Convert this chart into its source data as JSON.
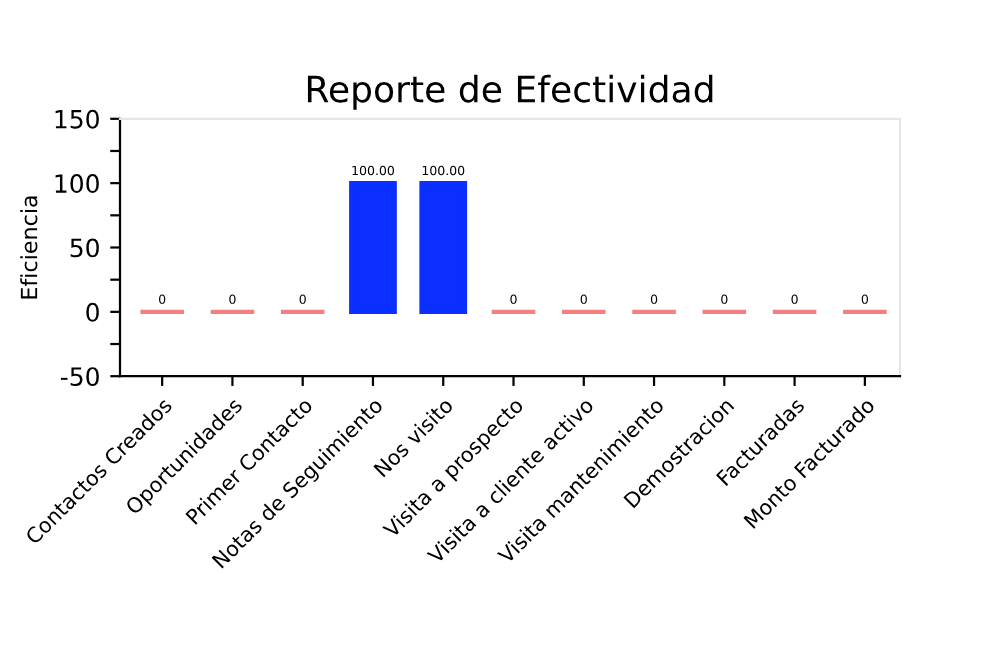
{
  "chart_data": {
    "type": "bar",
    "title": "Reporte de Efectividad",
    "ylabel": "Eficiencia",
    "categories": [
      "Contactos Creados",
      "Oportunidades",
      "Primer Contacto",
      "Notas de Seguimiento",
      "Nos visito",
      "Visita a prospecto",
      "Visita a cliente activo",
      "Visita mantenimiento",
      "Demostracion",
      "Facturadas",
      "Monto Facturado"
    ],
    "values": [
      0,
      0,
      0,
      100,
      100,
      0,
      0,
      0,
      0,
      0,
      0
    ],
    "colors": [
      "#f28080",
      "#f28080",
      "#f28080",
      "#0a2fff",
      "#0a2fff",
      "#f28080",
      "#f28080",
      "#f28080",
      "#f28080",
      "#f28080",
      "#f28080"
    ],
    "value_labels": [
      "0",
      "0",
      "0",
      "100.00",
      "100.00",
      "0",
      "0",
      "0",
      "0",
      "0",
      "0"
    ],
    "ylim": [
      -50,
      150
    ],
    "yticks": [
      -50,
      {
        "value": -25,
        "label": null
      },
      0,
      {
        "value": 25,
        "label": null
      },
      50,
      {
        "value": 75,
        "label": null
      },
      100,
      {
        "value": 125,
        "label": null
      },
      150
    ],
    "grid": false,
    "legend": false
  }
}
